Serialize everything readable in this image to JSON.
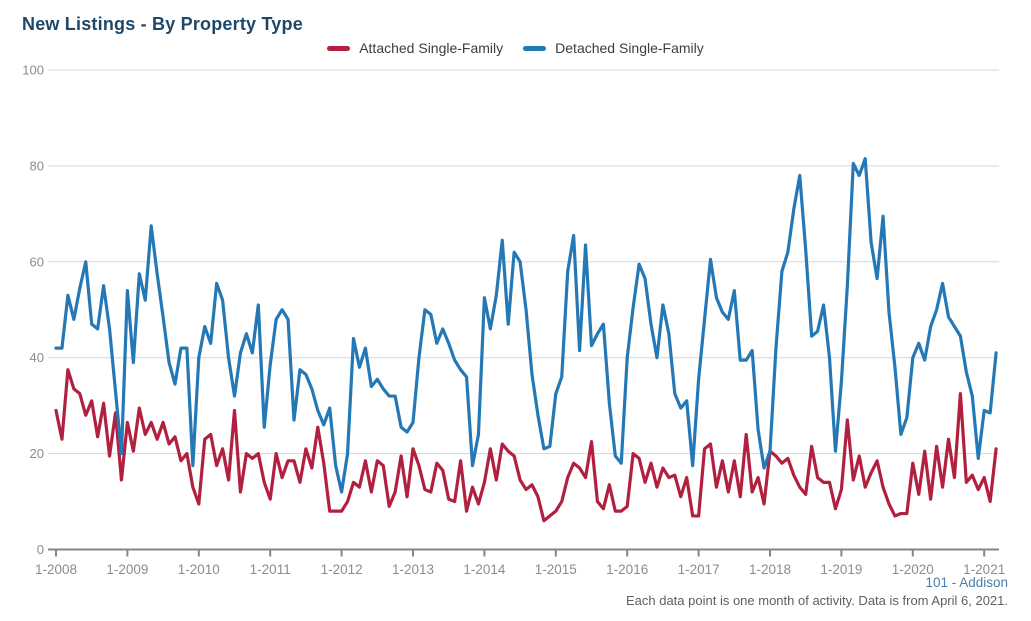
{
  "title": "New Listings - By Property Type",
  "footer": {
    "attribution": "101 - Addison",
    "note": "Each data point is one month of activity. Data is from April 6, 2021."
  },
  "colors": {
    "title_text": "#1f4768",
    "legend_text": "#3d3d3d",
    "axis_label_text": "#8c8c8c",
    "gridline": "#d6d6d6",
    "axis_line": "#858585",
    "attached_series": "#b2203f",
    "detached_series": "#2478b5",
    "attribution_text": "#4a7dab",
    "note_text": "#5f5f5f",
    "background": "#ffffff"
  },
  "chart_data": {
    "type": "line",
    "title": "New Listings - By Property Type",
    "xlabel": "",
    "ylabel": "",
    "ylim": [
      0,
      100
    ],
    "y_ticks": [
      0,
      20,
      40,
      60,
      80,
      100
    ],
    "x_tick_labels": [
      "1-2008",
      "1-2009",
      "1-2010",
      "1-2011",
      "1-2012",
      "1-2013",
      "1-2014",
      "1-2015",
      "1-2016",
      "1-2017",
      "1-2018",
      "1-2019",
      "1-2020",
      "1-2021"
    ],
    "x_start_month": "2008-01",
    "x_end_month": "2021-03",
    "points_per_series": 159,
    "grid": true,
    "legend_position": "top-center",
    "series": [
      {
        "name": "Attached Single-Family",
        "color": "#b2203f",
        "values": [
          29,
          23,
          37.5,
          33.5,
          32.5,
          28,
          31,
          23.5,
          30.5,
          19.5,
          28.5,
          14.5,
          26.5,
          20.5,
          29.5,
          24,
          26.5,
          23,
          26.5,
          22,
          23.5,
          18.5,
          20,
          13,
          9.5,
          23,
          24,
          17.5,
          21,
          14.5,
          29,
          12,
          20,
          19,
          20,
          14,
          10.5,
          20,
          15,
          18.5,
          18.5,
          14,
          21,
          17,
          25.5,
          18,
          8,
          8,
          8,
          10,
          14,
          13,
          18.5,
          12,
          18.5,
          17.5,
          9,
          12,
          19.5,
          11,
          21,
          17.5,
          12.5,
          12,
          18,
          16.5,
          10.5,
          10,
          18.5,
          8,
          13,
          9.5,
          14,
          21,
          14.5,
          22,
          20.5,
          19.5,
          14.5,
          12.5,
          13.5,
          11,
          6,
          7,
          8,
          10,
          15,
          18,
          17,
          15,
          22.5,
          10,
          8.5,
          13.5,
          8,
          8,
          9,
          20,
          19,
          14,
          18,
          13,
          17,
          15,
          15.5,
          11,
          15,
          7,
          7,
          21,
          22,
          13,
          18.5,
          12,
          18.5,
          11,
          24,
          12,
          15,
          9.5,
          20.5,
          19.5,
          18,
          19,
          15.5,
          13,
          11.5,
          21.5,
          15,
          14,
          14,
          8.5,
          12.5,
          27,
          14.5,
          19.5,
          13,
          16,
          18.5,
          13,
          9.5,
          7,
          7.5,
          7.5,
          18,
          11.5,
          20.5,
          10.5,
          21.5,
          13,
          23,
          15,
          32.5,
          14,
          15.5,
          12.5,
          15,
          10,
          21
        ]
      },
      {
        "name": "Detached Single-Family",
        "color": "#2478b5",
        "values": [
          42,
          42,
          53,
          48,
          54.5,
          60,
          47,
          46,
          55,
          46,
          33,
          20,
          54,
          39,
          57.5,
          52,
          67.5,
          57.5,
          48.5,
          39,
          34.5,
          42,
          42,
          17.5,
          40,
          46.5,
          43,
          55.5,
          52,
          40,
          32,
          41,
          45,
          41,
          51,
          25.5,
          38.5,
          48,
          50,
          48,
          27,
          37.5,
          36.5,
          33.5,
          29,
          26,
          29.5,
          17.5,
          12,
          20,
          44,
          38,
          42,
          34,
          35.5,
          33.5,
          32,
          32,
          25.5,
          24.5,
          26.5,
          40,
          50,
          49,
          43,
          46,
          43,
          39.5,
          37.5,
          36,
          17.5,
          24,
          52.5,
          46,
          53,
          64.5,
          47,
          62,
          60,
          50,
          36.5,
          28,
          21,
          21.5,
          32.5,
          36,
          58,
          65.5,
          41.5,
          63.5,
          42.5,
          45,
          47,
          30.5,
          19.5,
          18,
          40,
          50.5,
          59.5,
          56.5,
          47,
          40,
          51,
          45,
          32.5,
          29.5,
          31,
          17.5,
          35.5,
          48,
          60.5,
          52.5,
          49.5,
          48,
          54,
          39.5,
          39.5,
          41.5,
          25,
          17,
          20.5,
          42,
          58,
          62,
          71,
          78,
          62.5,
          44.5,
          45.5,
          51,
          40,
          20.5,
          35,
          55,
          80.5,
          78,
          81.5,
          64,
          56.5,
          69.5,
          49.5,
          38,
          24,
          27.5,
          40,
          43,
          39.5,
          46.5,
          50,
          55.5,
          48.5,
          46.5,
          44.5,
          37,
          32,
          19,
          29,
          28.5,
          41
        ]
      }
    ]
  }
}
